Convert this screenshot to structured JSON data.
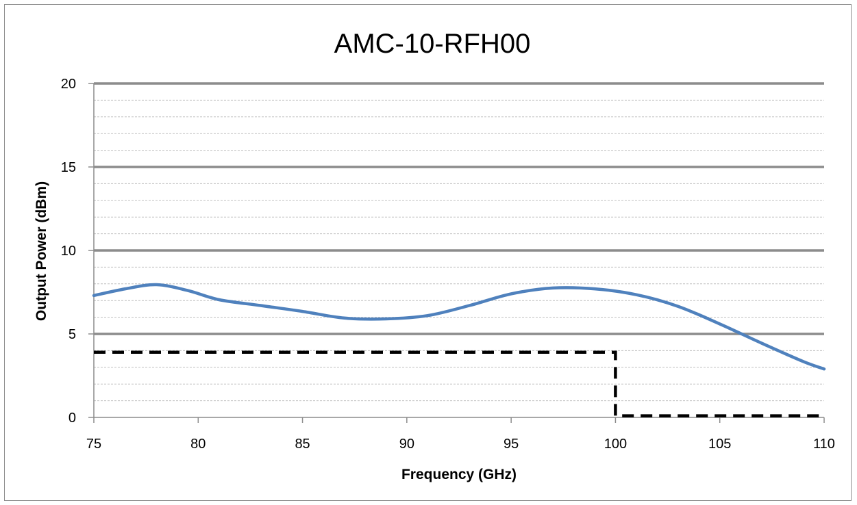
{
  "chart_data": {
    "type": "line",
    "title": "AMC-10-RFH00",
    "xlabel": "Frequency (GHz)",
    "ylabel": "Output Power (dBm)",
    "xlim": [
      75,
      110
    ],
    "ylim": [
      0,
      20
    ],
    "x_ticks": [
      "75",
      "80",
      "85",
      "90",
      "95",
      "100",
      "105",
      "110"
    ],
    "y_ticks": [
      "0",
      "5",
      "10",
      "15",
      "20"
    ],
    "grid": "major solid, minor dashed",
    "legend": "none",
    "series": [
      {
        "color": "#4f81bd",
        "style": "solid",
        "x": [
          75,
          76.5,
          78,
          79.5,
          81,
          83,
          85,
          87,
          89,
          91,
          93,
          95,
          97,
          99,
          101,
          103,
          105,
          107,
          109,
          110
        ],
        "y": [
          7.3,
          7.7,
          7.95,
          7.6,
          7.05,
          6.7,
          6.35,
          5.95,
          5.9,
          6.1,
          6.7,
          7.4,
          7.75,
          7.7,
          7.35,
          6.65,
          5.6,
          4.45,
          3.35,
          2.9
        ]
      },
      {
        "color": "#000000",
        "style": "dashed",
        "x": [
          75,
          100,
          100,
          110
        ],
        "y": [
          3.9,
          3.9,
          0.1,
          0.1
        ]
      }
    ]
  }
}
